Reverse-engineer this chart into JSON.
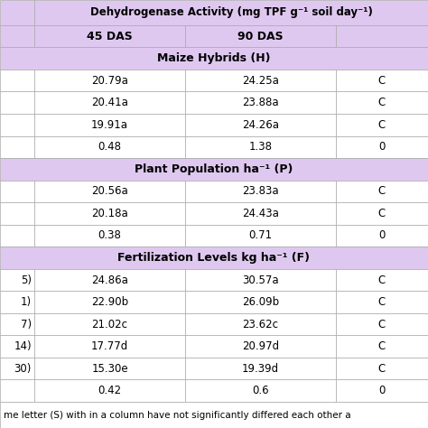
{
  "title": "Dehydrogenase Activity (mg TPF g⁻¹ soil day⁻¹)",
  "col_headers": [
    "45 DAS",
    "90 DAS"
  ],
  "section1_header": "Maize Hybrids (H)",
  "section1_rows": [
    [
      "",
      "20.79a",
      "24.25a",
      "C"
    ],
    [
      "",
      "20.41a",
      "23.88a",
      "C"
    ],
    [
      "",
      "19.91a",
      "24.26a",
      "C"
    ],
    [
      "",
      "0.48",
      "1.38",
      "0"
    ]
  ],
  "section2_header": "Plant Population ha⁻¹ (P)",
  "section2_rows": [
    [
      "",
      "20.56a",
      "23.83a",
      "C"
    ],
    [
      "",
      "20.18a",
      "24.43a",
      "C"
    ],
    [
      "",
      "0.38",
      "0.71",
      "0"
    ]
  ],
  "section3_header": "Fertilization Levels kg ha⁻¹ (F)",
  "section3_rows": [
    [
      "5)",
      "24.86a",
      "30.57a",
      "C"
    ],
    [
      "1)",
      "22.90b",
      "26.09b",
      "C"
    ],
    [
      "7)",
      "21.02c",
      "23.62c",
      "C"
    ],
    [
      "14)",
      "17.77d",
      "20.97d",
      "C"
    ],
    [
      "30)",
      "15.30e",
      "19.39d",
      "C"
    ],
    [
      "",
      "0.42",
      "0.6",
      "0"
    ]
  ],
  "footer": "me letter (S) with in a column have not significantly differed each other a",
  "header_bg": "#dfc8f0",
  "row_bg_white": "#ffffff",
  "border_color": "#aaaaaa",
  "text_color": "#000000"
}
